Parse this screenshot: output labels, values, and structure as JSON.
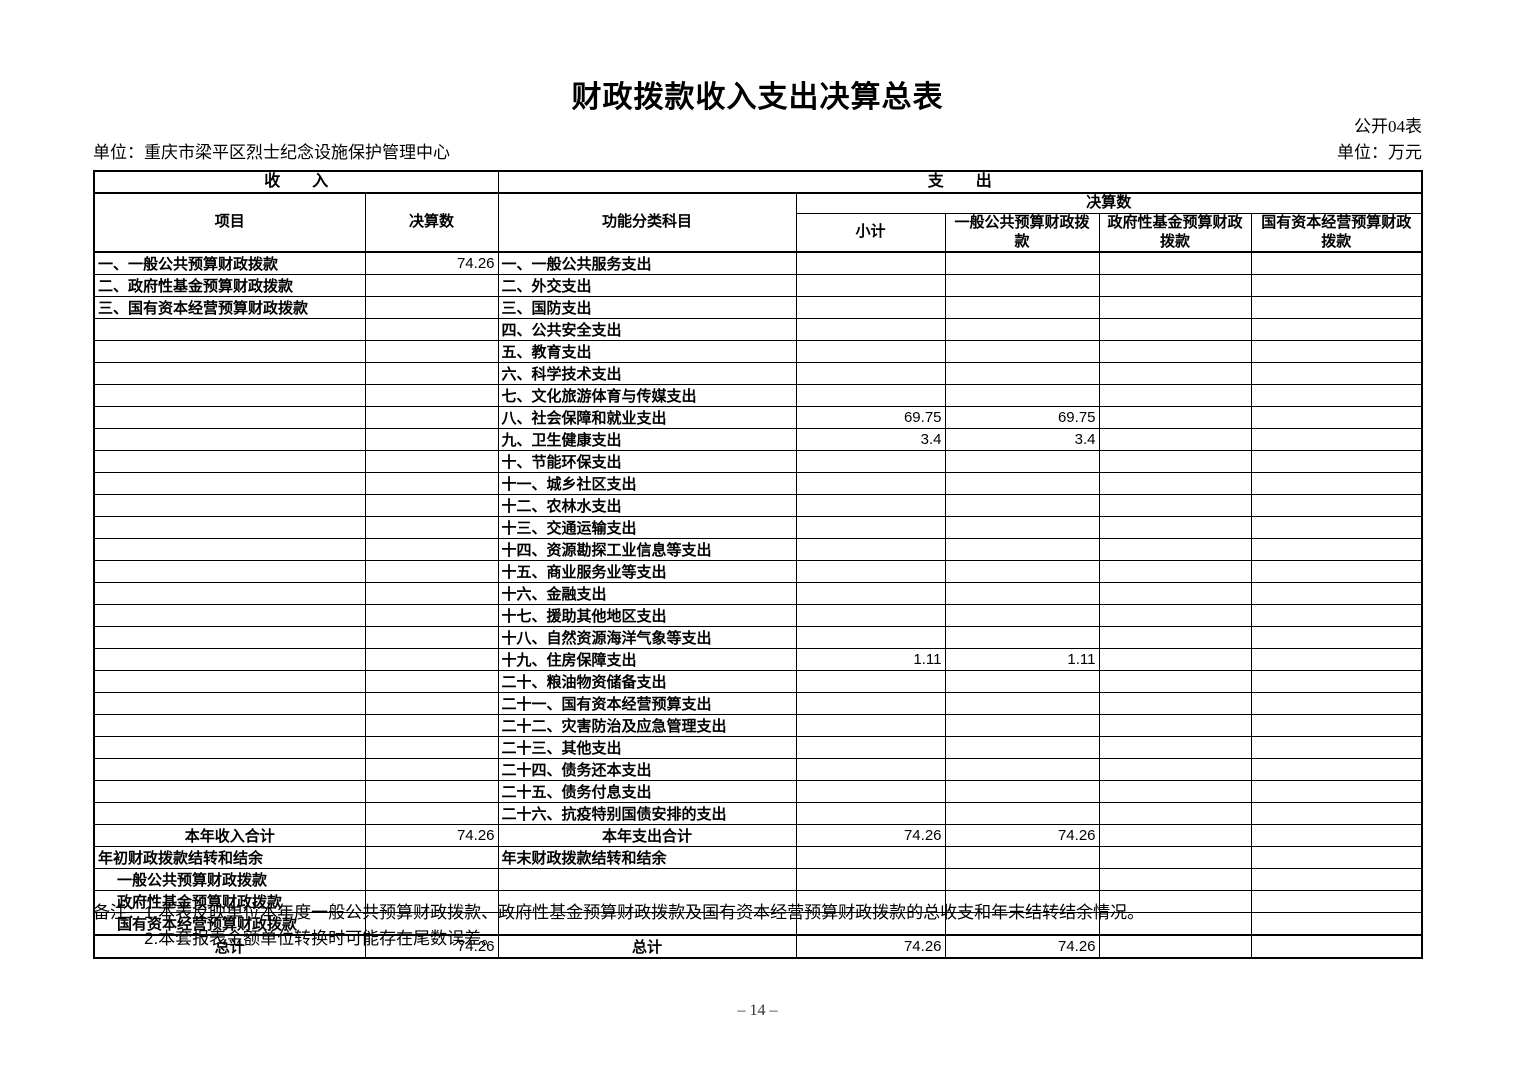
{
  "page": {
    "title": "财政拨款收入支出决算总表",
    "doc_label": "公开04表",
    "org_unit": "单位：重庆市梁平区烈士纪念设施保护管理中心",
    "money_unit": "单位：万元",
    "page_number": "– 14 –"
  },
  "table": {
    "header": {
      "income": "收　　入",
      "expense": "支　　出",
      "item": "项目",
      "final_amount": "决算数",
      "func_category": "功能分类科目",
      "final_amount_group": "决算数",
      "subtotal": "小计",
      "general_budget": "一般公共预算财政拨款",
      "gov_fund": "政府性基金预算财政拨款",
      "state_capital": "国有资本经营预算财政拨款"
    },
    "rows": [
      {
        "income": {
          "label": "一、一般公共预算财政拨款",
          "value": "74.26"
        },
        "expense": {
          "label": "一、一般公共服务支出",
          "subtotal": "",
          "general": "",
          "gov_fund": "",
          "state_capital": ""
        }
      },
      {
        "income": {
          "label": "二、政府性基金预算财政拨款",
          "value": ""
        },
        "expense": {
          "label": "二、外交支出",
          "subtotal": "",
          "general": "",
          "gov_fund": "",
          "state_capital": ""
        }
      },
      {
        "income": {
          "label": "三、国有资本经营预算财政拨款",
          "value": ""
        },
        "expense": {
          "label": "三、国防支出",
          "subtotal": "",
          "general": "",
          "gov_fund": "",
          "state_capital": ""
        }
      },
      {
        "income": {
          "label": "",
          "value": ""
        },
        "expense": {
          "label": "四、公共安全支出",
          "subtotal": "",
          "general": "",
          "gov_fund": "",
          "state_capital": ""
        }
      },
      {
        "income": {
          "label": "",
          "value": ""
        },
        "expense": {
          "label": "五、教育支出",
          "subtotal": "",
          "general": "",
          "gov_fund": "",
          "state_capital": ""
        }
      },
      {
        "income": {
          "label": "",
          "value": ""
        },
        "expense": {
          "label": "六、科学技术支出",
          "subtotal": "",
          "general": "",
          "gov_fund": "",
          "state_capital": ""
        }
      },
      {
        "income": {
          "label": "",
          "value": ""
        },
        "expense": {
          "label": "七、文化旅游体育与传媒支出",
          "subtotal": "",
          "general": "",
          "gov_fund": "",
          "state_capital": ""
        }
      },
      {
        "income": {
          "label": "",
          "value": ""
        },
        "expense": {
          "label": "八、社会保障和就业支出",
          "subtotal": "69.75",
          "general": "69.75",
          "gov_fund": "",
          "state_capital": ""
        }
      },
      {
        "income": {
          "label": "",
          "value": ""
        },
        "expense": {
          "label": "九、卫生健康支出",
          "subtotal": "3.4",
          "general": "3.4",
          "gov_fund": "",
          "state_capital": ""
        }
      },
      {
        "income": {
          "label": "",
          "value": ""
        },
        "expense": {
          "label": "十、节能环保支出",
          "subtotal": "",
          "general": "",
          "gov_fund": "",
          "state_capital": ""
        }
      },
      {
        "income": {
          "label": "",
          "value": ""
        },
        "expense": {
          "label": "十一、城乡社区支出",
          "subtotal": "",
          "general": "",
          "gov_fund": "",
          "state_capital": ""
        }
      },
      {
        "income": {
          "label": "",
          "value": ""
        },
        "expense": {
          "label": "十二、农林水支出",
          "subtotal": "",
          "general": "",
          "gov_fund": "",
          "state_capital": ""
        }
      },
      {
        "income": {
          "label": "",
          "value": ""
        },
        "expense": {
          "label": "十三、交通运输支出",
          "subtotal": "",
          "general": "",
          "gov_fund": "",
          "state_capital": ""
        }
      },
      {
        "income": {
          "label": "",
          "value": ""
        },
        "expense": {
          "label": "十四、资源勘探工业信息等支出",
          "subtotal": "",
          "general": "",
          "gov_fund": "",
          "state_capital": ""
        }
      },
      {
        "income": {
          "label": "",
          "value": ""
        },
        "expense": {
          "label": "十五、商业服务业等支出",
          "subtotal": "",
          "general": "",
          "gov_fund": "",
          "state_capital": ""
        }
      },
      {
        "income": {
          "label": "",
          "value": ""
        },
        "expense": {
          "label": "十六、金融支出",
          "subtotal": "",
          "general": "",
          "gov_fund": "",
          "state_capital": ""
        }
      },
      {
        "income": {
          "label": "",
          "value": ""
        },
        "expense": {
          "label": "十七、援助其他地区支出",
          "subtotal": "",
          "general": "",
          "gov_fund": "",
          "state_capital": ""
        }
      },
      {
        "income": {
          "label": "",
          "value": ""
        },
        "expense": {
          "label": "十八、自然资源海洋气象等支出",
          "subtotal": "",
          "general": "",
          "gov_fund": "",
          "state_capital": ""
        }
      },
      {
        "income": {
          "label": "",
          "value": ""
        },
        "expense": {
          "label": "十九、住房保障支出",
          "subtotal": "1.11",
          "general": "1.11",
          "gov_fund": "",
          "state_capital": ""
        }
      },
      {
        "income": {
          "label": "",
          "value": ""
        },
        "expense": {
          "label": "二十、粮油物资储备支出",
          "subtotal": "",
          "general": "",
          "gov_fund": "",
          "state_capital": ""
        }
      },
      {
        "income": {
          "label": "",
          "value": ""
        },
        "expense": {
          "label": "二十一、国有资本经营预算支出",
          "subtotal": "",
          "general": "",
          "gov_fund": "",
          "state_capital": ""
        }
      },
      {
        "income": {
          "label": "",
          "value": ""
        },
        "expense": {
          "label": "二十二、灾害防治及应急管理支出",
          "subtotal": "",
          "general": "",
          "gov_fund": "",
          "state_capital": ""
        }
      },
      {
        "income": {
          "label": "",
          "value": ""
        },
        "expense": {
          "label": "二十三、其他支出",
          "subtotal": "",
          "general": "",
          "gov_fund": "",
          "state_capital": ""
        }
      },
      {
        "income": {
          "label": "",
          "value": ""
        },
        "expense": {
          "label": "二十四、债务还本支出",
          "subtotal": "",
          "general": "",
          "gov_fund": "",
          "state_capital": ""
        }
      },
      {
        "income": {
          "label": "",
          "value": ""
        },
        "expense": {
          "label": "二十五、债务付息支出",
          "subtotal": "",
          "general": "",
          "gov_fund": "",
          "state_capital": ""
        }
      },
      {
        "income": {
          "label": "",
          "value": ""
        },
        "expense": {
          "label": "二十六、抗疫特别国债安排的支出",
          "subtotal": "",
          "general": "",
          "gov_fund": "",
          "state_capital": ""
        }
      },
      {
        "income": {
          "label": "本年收入合计",
          "value": "74.26",
          "align": "center"
        },
        "expense": {
          "label": "本年支出合计",
          "align": "center",
          "subtotal": "74.26",
          "general": "74.26",
          "gov_fund": "",
          "state_capital": ""
        }
      },
      {
        "income": {
          "label": "年初财政拨款结转和结余",
          "value": ""
        },
        "expense": {
          "label": "年末财政拨款结转和结余",
          "subtotal": "",
          "general": "",
          "gov_fund": "",
          "state_capital": ""
        }
      },
      {
        "income": {
          "label": "一般公共预算财政拨款",
          "value": "",
          "indent": true
        },
        "expense": {
          "label": "",
          "subtotal": "",
          "general": "",
          "gov_fund": "",
          "state_capital": ""
        }
      },
      {
        "income": {
          "label": "政府性基金预算财政拨款",
          "value": "",
          "indent": true
        },
        "expense": {
          "label": "",
          "subtotal": "",
          "general": "",
          "gov_fund": "",
          "state_capital": ""
        }
      },
      {
        "income": {
          "label": "国有资本经营预算财政拨款",
          "value": "",
          "indent": true
        },
        "expense": {
          "label": "",
          "subtotal": "",
          "general": "",
          "gov_fund": "",
          "state_capital": ""
        }
      },
      {
        "income": {
          "label": "总计",
          "value": "74.26",
          "align": "center",
          "total": true
        },
        "expense": {
          "label": "总计",
          "align": "center",
          "total": true,
          "subtotal": "74.26",
          "general": "74.26",
          "gov_fund": "",
          "state_capital": ""
        }
      }
    ]
  },
  "notes": {
    "label": "备注：",
    "line1": "1.本表反映单位本年度一般公共预算财政拨款、政府性基金预算财政拨款及国有资本经营预算财政拨款的总收支和年末结转结余情况。",
    "line2": "2.本套报表金额单位转换时可能存在尾数误差。"
  }
}
